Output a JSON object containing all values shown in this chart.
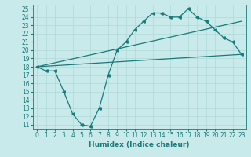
{
  "xlabel": "Humidex (Indice chaleur)",
  "bg_color": "#c8eaea",
  "grid_color": "#b0d8d8",
  "line_color": "#1a7a7a",
  "xlim": [
    -0.5,
    23.5
  ],
  "ylim": [
    10.5,
    25.5
  ],
  "xticks": [
    0,
    1,
    2,
    3,
    4,
    5,
    6,
    7,
    8,
    9,
    10,
    11,
    12,
    13,
    14,
    15,
    16,
    17,
    18,
    19,
    20,
    21,
    22,
    23
  ],
  "yticks": [
    11,
    12,
    13,
    14,
    15,
    16,
    17,
    18,
    19,
    20,
    21,
    22,
    23,
    24,
    25
  ],
  "line1_x": [
    0,
    1,
    2,
    3,
    4,
    5,
    6,
    7,
    8,
    9,
    10,
    11,
    12,
    13,
    14,
    15,
    16,
    17,
    18,
    19,
    20,
    21,
    22,
    23
  ],
  "line1_y": [
    18.0,
    17.5,
    17.5,
    15.0,
    12.3,
    11.0,
    10.8,
    13.0,
    17.0,
    20.0,
    21.0,
    22.5,
    23.5,
    24.5,
    24.5,
    24.0,
    24.0,
    25.0,
    24.0,
    23.5,
    22.5,
    21.5,
    21.0,
    19.5
  ],
  "line2_x": [
    0,
    23
  ],
  "line2_y": [
    18.0,
    23.5
  ],
  "line3_x": [
    0,
    23
  ],
  "line3_y": [
    18.0,
    19.5
  ],
  "marker_size": 2.5,
  "tick_fontsize": 5.5,
  "xlabel_fontsize": 6.5
}
